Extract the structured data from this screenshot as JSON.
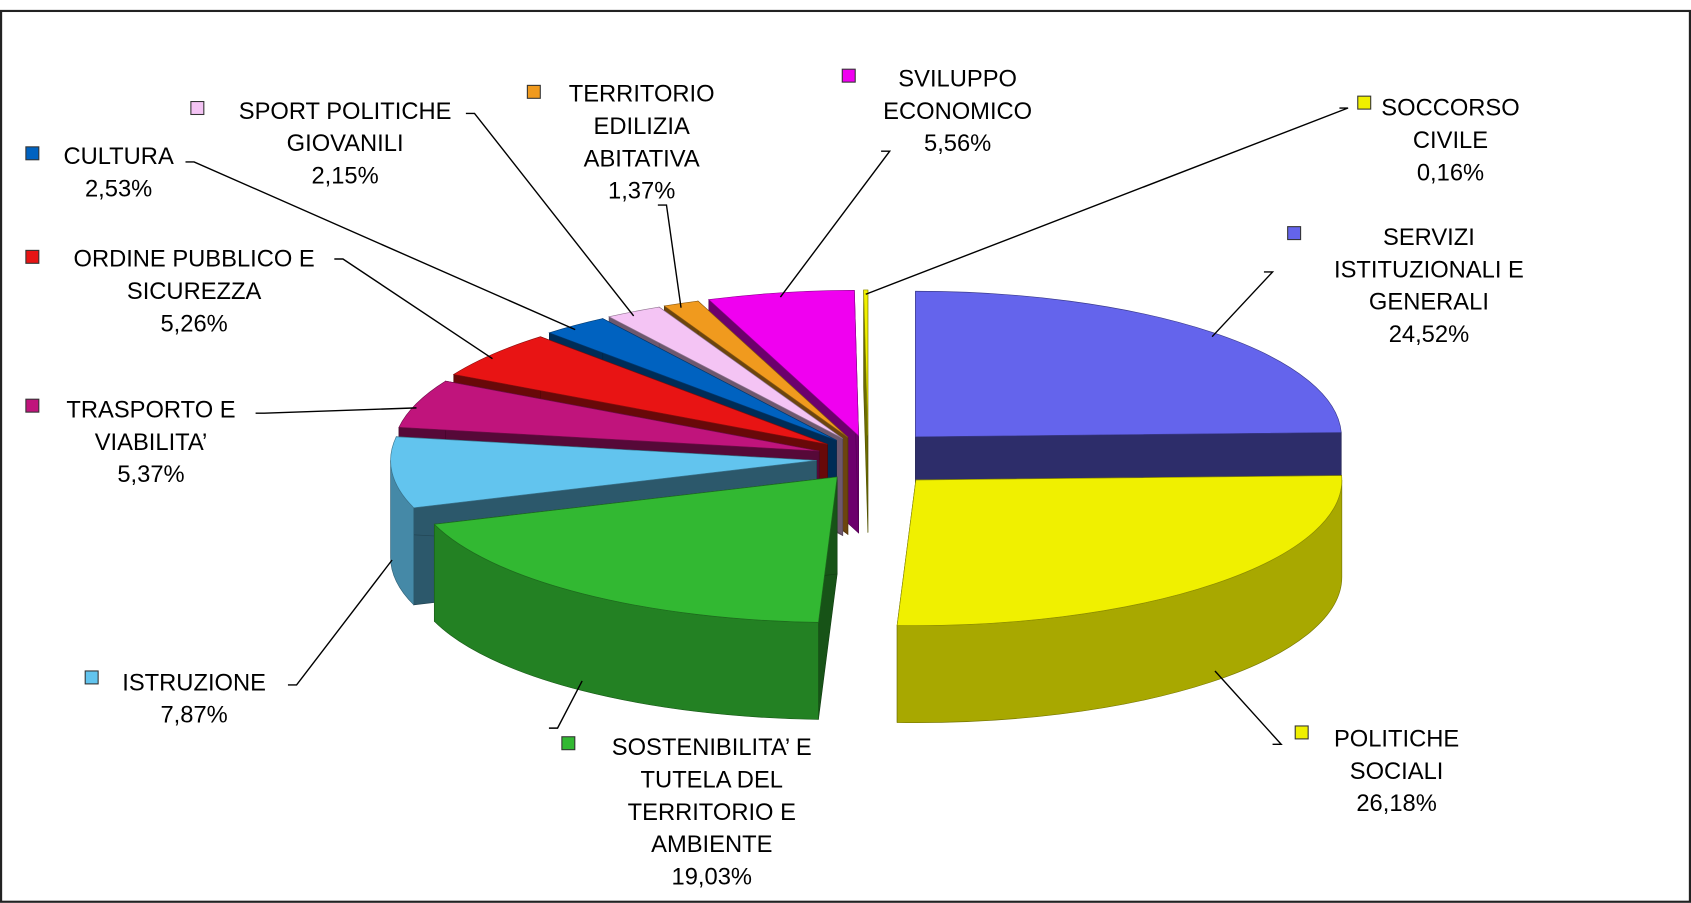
{
  "chart_data": {
    "type": "pie3d",
    "categories": [
      "SERVIZI ISTITUZIONALI E GENERALI",
      "POLITICHE SOCIALI",
      "SOSTENIBILITA’ E TUTELA DEL TERRITORIO E AMBIENTE",
      "ISTRUZIONE",
      "TRASPORTO E VIABILITA’",
      "ORDINE PUBBLICO E SICUREZZA",
      "CULTURA",
      "SPORT POLITICHE GIOVANILI",
      "TERRITORIO EDILIZIA ABITATIVA",
      "SVILUPPO ECONOMICO",
      "SOCCORSO CIVILE"
    ],
    "values": [
      24.52,
      26.18,
      19.03,
      7.87,
      5.37,
      5.26,
      2.53,
      2.15,
      1.37,
      5.56,
      0.16
    ],
    "value_labels": [
      "24,52%",
      "26,18%",
      "19,03%",
      "7,87%",
      "5,37%",
      "5,26%",
      "2,53%",
      "2,15%",
      "1,37%",
      "5,56%",
      "0,16%"
    ],
    "colors": [
      "#6464ec",
      "#f0f000",
      "#32b832",
      "#62c4ee",
      "#c0147c",
      "#e81414",
      "#0062c0",
      "#f4c4f4",
      "#f09a1e",
      "#f000f0",
      "#f0f000"
    ]
  }
}
